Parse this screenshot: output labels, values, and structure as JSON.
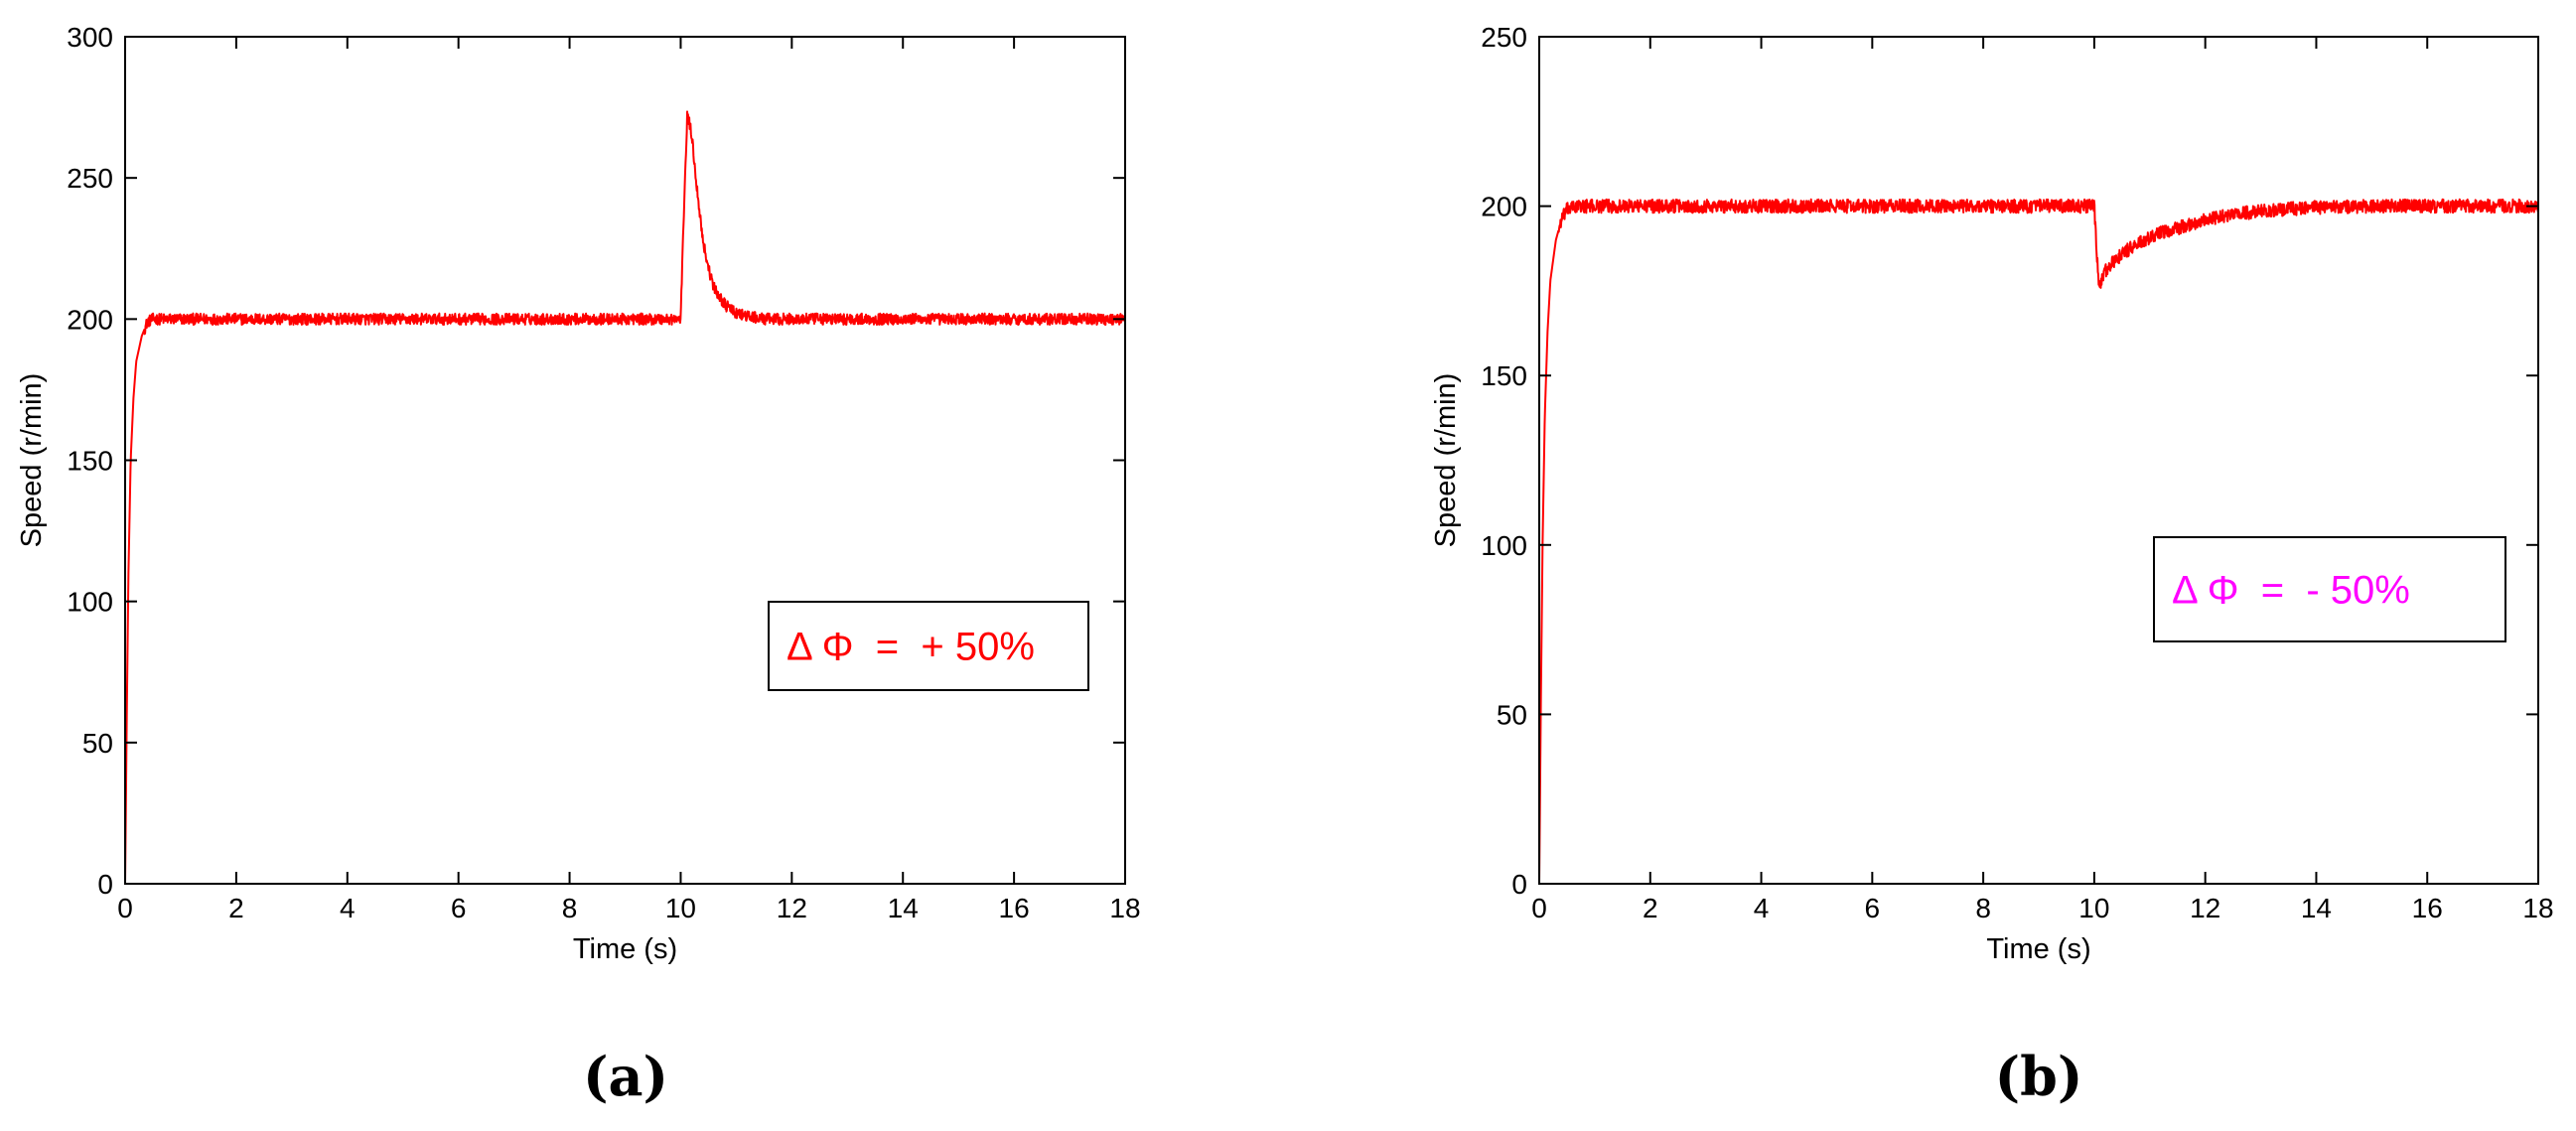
{
  "chart_data": [
    {
      "type": "line",
      "panel_label": "(a)",
      "xlabel": "Time (s)",
      "ylabel": "Speed (r/min)",
      "xlim": [
        0,
        18
      ],
      "ylim": [
        0,
        300
      ],
      "xticks": [
        0,
        2,
        4,
        6,
        8,
        10,
        12,
        14,
        16,
        18
      ],
      "yticks": [
        0,
        50,
        100,
        150,
        200,
        250,
        300
      ],
      "grid": false,
      "annotation": {
        "text": "Δ Φ  =  + 50%",
        "color": "#ff0000",
        "position": "right-middle"
      },
      "series": [
        {
          "color": "#ff0000",
          "noise_amplitude": 2,
          "x": [
            0,
            0.03,
            0.06,
            0.1,
            0.15,
            0.2,
            0.3,
            0.4,
            0.5,
            0.7,
            1.0,
            10.0,
            10.06,
            10.12,
            10.2,
            10.3,
            10.4,
            10.5,
            10.6,
            10.8,
            11.0,
            11.2,
            11.5,
            12.0,
            18.0
          ],
          "y": [
            0,
            60,
            110,
            150,
            172,
            185,
            194,
            199,
            200,
            200,
            200,
            200,
            240,
            273,
            265,
            245,
            228,
            218,
            211,
            205,
            202,
            201,
            200,
            200,
            200
          ]
        }
      ]
    },
    {
      "type": "line",
      "panel_label": "(b)",
      "xlabel": "Time (s)",
      "ylabel": "Speed (r/min)",
      "xlim": [
        0,
        18
      ],
      "ylim": [
        0,
        250
      ],
      "xticks": [
        0,
        2,
        4,
        6,
        8,
        10,
        12,
        14,
        16,
        18
      ],
      "yticks": [
        0,
        50,
        100,
        150,
        200,
        250
      ],
      "grid": false,
      "annotation": {
        "text": "Δ Φ  =  - 50%",
        "color": "#ff00ff",
        "position": "right-middle"
      },
      "series": [
        {
          "color": "#ff0000",
          "noise_amplitude": 2,
          "x": [
            0,
            0.03,
            0.06,
            0.1,
            0.15,
            0.2,
            0.3,
            0.4,
            0.5,
            0.7,
            1.0,
            10.0,
            10.08,
            10.2,
            10.5,
            10.8,
            11.2,
            11.6,
            12.0,
            12.5,
            13.0,
            13.5,
            14.0,
            15.0,
            16.0,
            18.0
          ],
          "y": [
            0,
            55,
            100,
            138,
            163,
            178,
            190,
            196,
            199,
            200,
            200,
            200,
            176,
            181,
            186,
            189,
            192,
            194,
            196,
            197.5,
            198.5,
            199.2,
            199.6,
            200,
            200,
            200
          ]
        }
      ]
    }
  ]
}
